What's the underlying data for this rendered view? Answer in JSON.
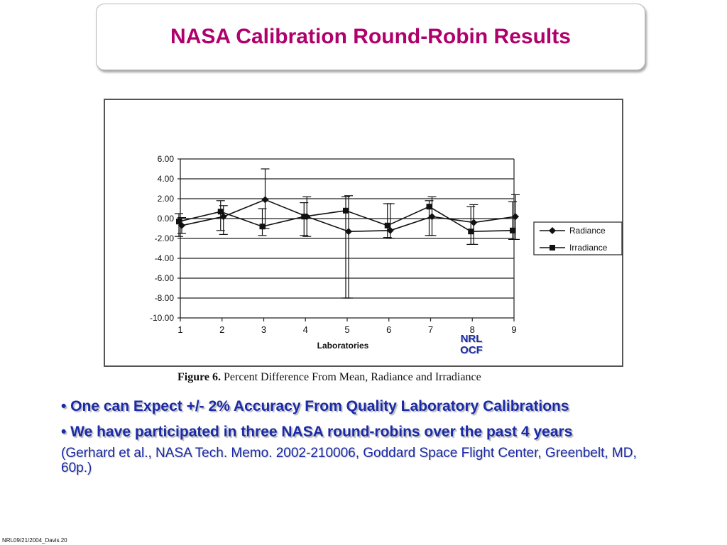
{
  "slide": {
    "title": "NASA Calibration Round-Robin Results",
    "footer": "NRL09/21/2004_Davis.20"
  },
  "figure": {
    "caption_bold": "Figure 6.",
    "caption_text": " Percent Difference From Mean, Radiance and Irradiance"
  },
  "annotation": {
    "line1": "NRL",
    "line2": "OCF"
  },
  "bullets": [
    "• One can Expect +/- 2% Accuracy From Quality Laboratory Calibrations",
    "• We have participated in three NASA round-robins over the past 4 years"
  ],
  "citation": "(Gerhard et al., NASA Tech. Memo. 2002-210006, Goddard Space Flight Center, Greenbelt, MD, 60p.)",
  "chart_data": {
    "type": "line",
    "title": "",
    "xlabel": "Laboratories",
    "ylabel": "",
    "x": [
      1,
      2,
      3,
      4,
      5,
      6,
      7,
      8,
      9
    ],
    "ylim": [
      -10,
      6
    ],
    "yticks": [
      "6.00",
      "4.00",
      "2.00",
      "0.00",
      "-2.00",
      "-4.00",
      "-6.00",
      "-8.00",
      "-10.00"
    ],
    "xticks": [
      "1",
      "2",
      "3",
      "4",
      "5",
      "6",
      "7",
      "8",
      "9"
    ],
    "grid": true,
    "legend": "right",
    "series": [
      {
        "name": "Radiance",
        "marker": "diamond",
        "line": "solid",
        "values": [
          -0.7,
          0.2,
          1.9,
          0.2,
          -1.3,
          -1.2,
          0.2,
          -0.4,
          0.2
        ],
        "err_low": [
          -1.5,
          -1.6,
          -1.0,
          -1.8,
          -8.0,
          -2.0,
          -1.7,
          -2.6,
          -2.1
        ],
        "err_high": [
          0.1,
          1.3,
          5.0,
          2.2,
          2.3,
          1.5,
          2.2,
          1.4,
          2.4
        ]
      },
      {
        "name": "Irradiance",
        "marker": "square",
        "line": "solid",
        "values": [
          -0.3,
          0.7,
          -0.8,
          0.2,
          0.8,
          -0.7,
          1.2,
          -1.3,
          -1.2
        ],
        "err_low": [
          -1.8,
          -1.2,
          -1.7,
          -1.7,
          -8.0,
          -1.9,
          -1.7,
          -2.6,
          -2.1
        ],
        "err_high": [
          0.5,
          1.8,
          1.0,
          1.6,
          2.2,
          1.5,
          1.8,
          1.2,
          1.7
        ]
      }
    ]
  }
}
